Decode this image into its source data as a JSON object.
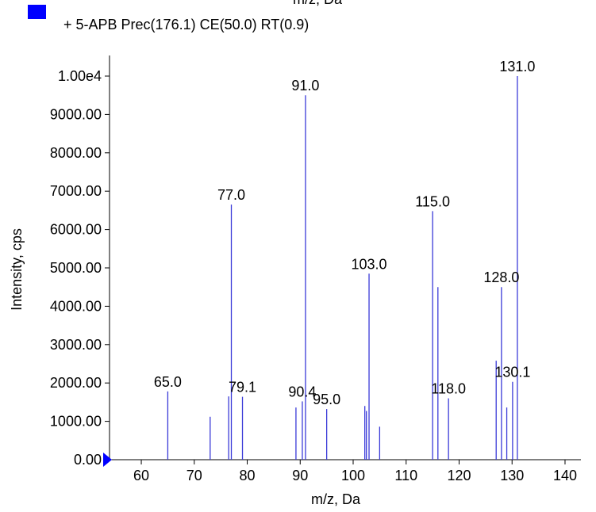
{
  "chart_data": {
    "type": "bar",
    "top_clipped_label": "m/z, Da",
    "legend": {
      "placement": "top-left",
      "entries": [
        {
          "label": "+ 5-APB Prec(176.1) CE(50.0) RT(0.9)",
          "color": "#0000ff"
        }
      ]
    },
    "xlabel": "m/z, Da",
    "ylabel": "Intensity, cps",
    "xlim": [
      54,
      143
    ],
    "ylim": [
      0,
      10000
    ],
    "x_ticks": [
      60,
      70,
      80,
      90,
      100,
      110,
      120,
      130,
      140
    ],
    "x_tick_labels": [
      "60",
      "70",
      "80",
      "90",
      "100",
      "110",
      "120",
      "130",
      "140"
    ],
    "y_ticks": [
      0,
      1000,
      2000,
      3000,
      4000,
      5000,
      6000,
      7000,
      8000,
      9000,
      10000
    ],
    "y_tick_labels": [
      "0.00",
      "1000.00",
      "2000.00",
      "3000.00",
      "4000.00",
      "5000.00",
      "6000.00",
      "7000.00",
      "8000.00",
      "9000.00",
      "1.00e4"
    ],
    "grid": false,
    "series": [
      {
        "color": "#3a3ad8",
        "peaks": [
          {
            "x": 65.0,
            "y": 1780,
            "label": "65.0"
          },
          {
            "x": 73.0,
            "y": 1120
          },
          {
            "x": 76.5,
            "y": 1650
          },
          {
            "x": 77.0,
            "y": 6650,
            "label": "77.0"
          },
          {
            "x": 79.1,
            "y": 1640,
            "label": "79.1"
          },
          {
            "x": 89.2,
            "y": 1360
          },
          {
            "x": 90.4,
            "y": 1520,
            "label": "90.4"
          },
          {
            "x": 91.0,
            "y": 9500,
            "label": "91.0"
          },
          {
            "x": 95.0,
            "y": 1320,
            "label": "95.0"
          },
          {
            "x": 102.2,
            "y": 1400
          },
          {
            "x": 102.5,
            "y": 1270
          },
          {
            "x": 103.0,
            "y": 4850,
            "label": "103.0"
          },
          {
            "x": 105.0,
            "y": 860
          },
          {
            "x": 115.0,
            "y": 6480,
            "label": "115.0"
          },
          {
            "x": 116.0,
            "y": 4500
          },
          {
            "x": 118.0,
            "y": 1600,
            "label": "118.0"
          },
          {
            "x": 127.0,
            "y": 2580
          },
          {
            "x": 128.0,
            "y": 4500,
            "label": "128.0"
          },
          {
            "x": 129.0,
            "y": 1360
          },
          {
            "x": 130.1,
            "y": 2030,
            "label": "130.1"
          },
          {
            "x": 131.0,
            "y": 10000,
            "label": "131.0"
          }
        ]
      }
    ]
  }
}
